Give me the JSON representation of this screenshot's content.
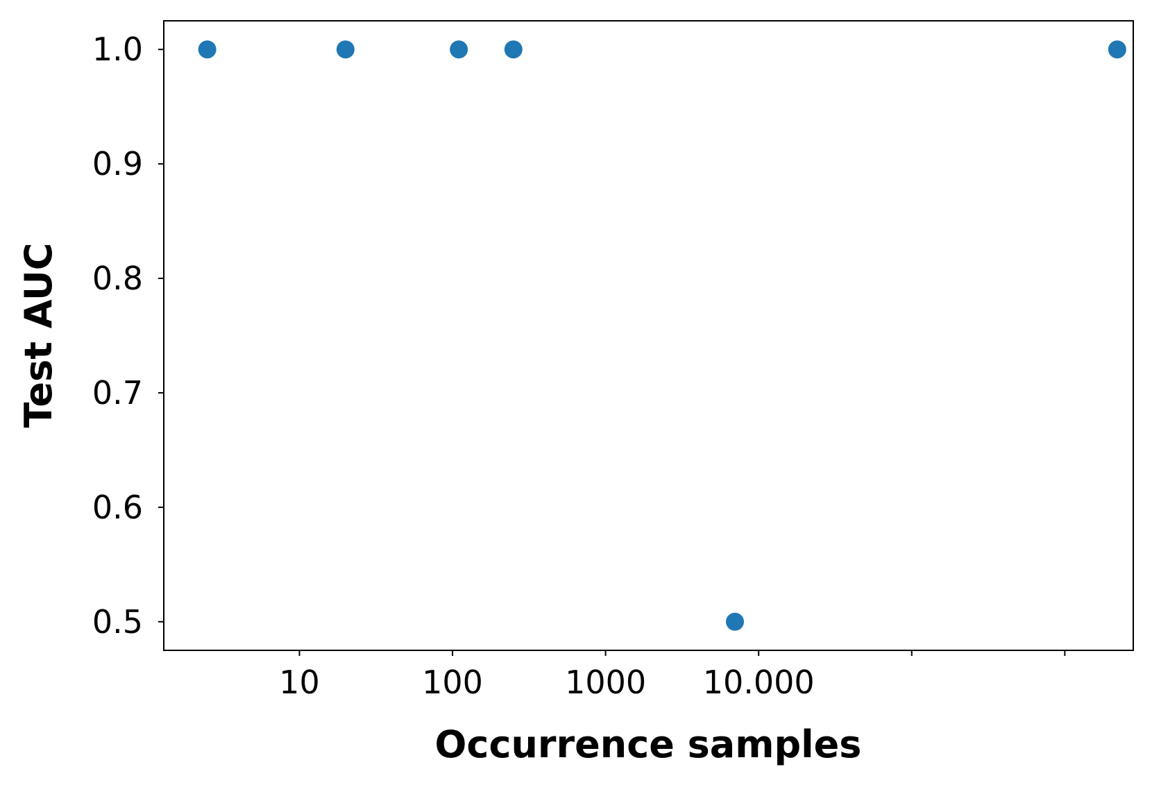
{
  "chart_data": {
    "type": "scatter",
    "title": "",
    "xlabel": "Occurrence samples",
    "ylabel": "Test AUC",
    "x_scale": "log",
    "xlim": [
      1.3,
      2800000
    ],
    "ylim": [
      0.475,
      1.025
    ],
    "grid": false,
    "x_ticks": [
      {
        "value": 10,
        "label": "10"
      },
      {
        "value": 100,
        "label": "100"
      },
      {
        "value": 1000,
        "label": "1000"
      },
      {
        "value": 10000,
        "label": "10.000"
      },
      {
        "value": 100000,
        "label": ""
      },
      {
        "value": 1000000,
        "label": ""
      }
    ],
    "y_ticks": [
      {
        "value": 0.5,
        "label": "0.5"
      },
      {
        "value": 0.6,
        "label": "0.6"
      },
      {
        "value": 0.7,
        "label": "0.7"
      },
      {
        "value": 0.8,
        "label": "0.8"
      },
      {
        "value": 0.9,
        "label": "0.9"
      },
      {
        "value": 1.0,
        "label": "1.0"
      }
    ],
    "series": [
      {
        "color": "#1f77b4",
        "points": [
          {
            "x": 2.5,
            "y": 1.0
          },
          {
            "x": 20,
            "y": 1.0
          },
          {
            "x": 110,
            "y": 1.0
          },
          {
            "x": 250,
            "y": 1.0
          },
          {
            "x": 7000,
            "y": 0.5
          },
          {
            "x": 2200000,
            "y": 1.0
          }
        ]
      }
    ]
  }
}
